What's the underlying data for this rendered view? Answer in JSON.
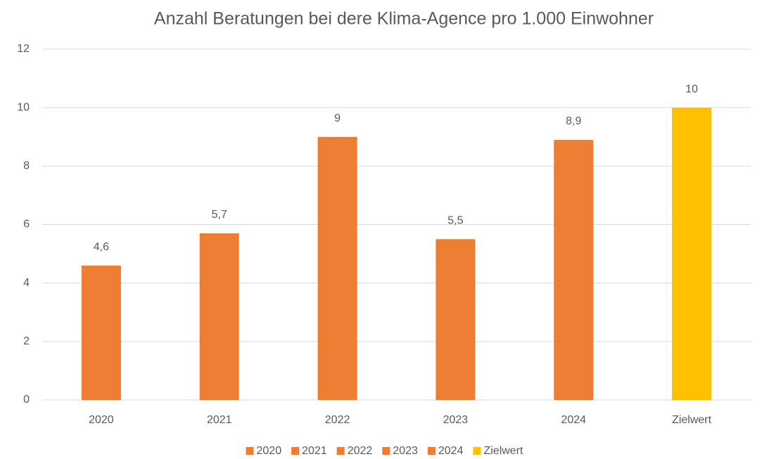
{
  "chart_data": {
    "type": "bar",
    "title": "Anzahl Beratungen bei dere Klima-Agence pro 1.000 Einwohner",
    "categories": [
      "2020",
      "2021",
      "2022",
      "2023",
      "2024",
      "Zielwert"
    ],
    "values": [
      4.6,
      5.7,
      9,
      5.5,
      8.9,
      10
    ],
    "value_labels": [
      "4,6",
      "5,7",
      "9",
      "5,5",
      "8,9",
      "10"
    ],
    "colors": [
      "#ed7d31",
      "#ed7d31",
      "#ed7d31",
      "#ed7d31",
      "#ed7d31",
      "#ffc000"
    ],
    "ylim": [
      0,
      12
    ],
    "yticks": [
      0,
      2,
      4,
      6,
      8,
      10,
      12
    ],
    "grid": true,
    "legend": "bottom"
  }
}
